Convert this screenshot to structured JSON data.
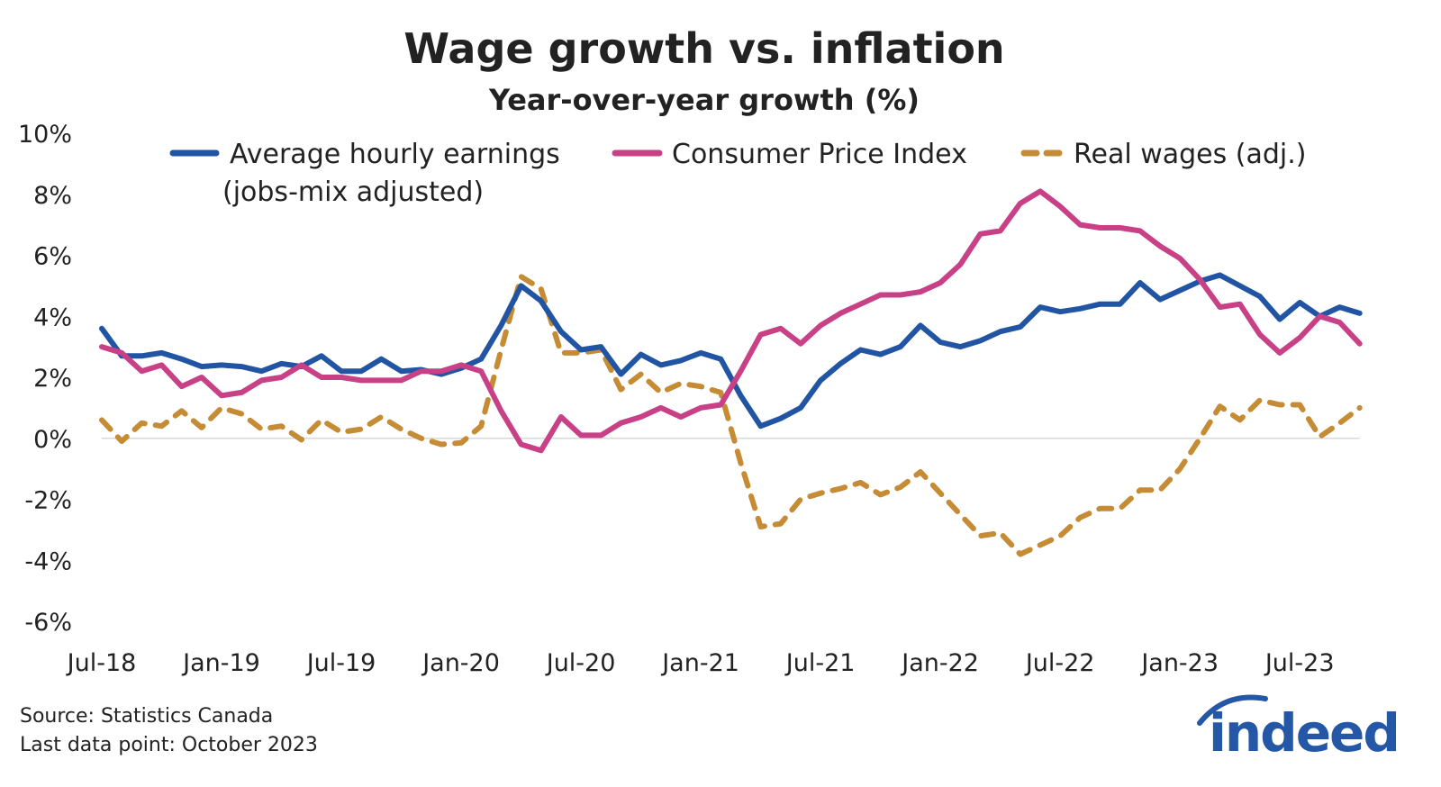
{
  "chart_data": {
    "type": "line",
    "title": "Wage growth vs. inflation",
    "subtitle": "Year-over-year growth (%)",
    "xlabel": "",
    "ylabel": "",
    "ylim": [
      -6,
      10
    ],
    "y_ticks": [
      "10%",
      "8%",
      "6%",
      "4%",
      "2%",
      "0%",
      "-2%",
      "-4%",
      "-6%"
    ],
    "y_tick_values": [
      10,
      8,
      6,
      4,
      2,
      0,
      -2,
      -4,
      -6
    ],
    "x_start": "2018-07",
    "x_end": "2023-10",
    "x_ticks": [
      "Jul-18",
      "Jan-19",
      "Jul-19",
      "Jan-20",
      "Jul-20",
      "Jan-21",
      "Jul-21",
      "Jan-22",
      "Jul-22",
      "Jan-23",
      "Jul-23"
    ],
    "x_tick_months": [
      "2018-07",
      "2019-01",
      "2019-07",
      "2020-01",
      "2020-07",
      "2021-01",
      "2021-07",
      "2022-01",
      "2022-07",
      "2023-01",
      "2023-07"
    ],
    "grid": "zero line only",
    "legend_position": "top",
    "series": [
      {
        "name": "Average hourly earnings (jobs-mix adjusted)",
        "legend_line1": "Average hourly earnings",
        "legend_line2": "(jobs-mix adjusted)",
        "color": "#2155a3",
        "style": "solid",
        "values": [
          3.6,
          2.7,
          2.7,
          2.8,
          2.6,
          2.35,
          2.4,
          2.35,
          2.2,
          2.45,
          2.35,
          2.7,
          2.2,
          2.2,
          2.6,
          2.2,
          2.25,
          2.1,
          2.3,
          2.6,
          3.7,
          5.0,
          4.5,
          3.5,
          2.9,
          3.0,
          2.1,
          2.75,
          2.4,
          2.55,
          2.8,
          2.6,
          1.4,
          0.4,
          0.65,
          1.0,
          1.9,
          2.45,
          2.9,
          2.75,
          3.0,
          3.7,
          3.15,
          3.0,
          3.2,
          3.5,
          3.65,
          4.3,
          4.15,
          4.25,
          4.4,
          4.4,
          5.1,
          4.55,
          4.85,
          5.15,
          5.35,
          5.0,
          4.65,
          3.9,
          4.45,
          4.0,
          4.3,
          4.1
        ]
      },
      {
        "name": "Consumer Price Index",
        "color": "#c84187",
        "style": "solid",
        "values": [
          3.0,
          2.8,
          2.2,
          2.4,
          1.7,
          2.0,
          1.4,
          1.5,
          1.9,
          2.0,
          2.4,
          2.0,
          2.0,
          1.9,
          1.9,
          1.9,
          2.2,
          2.2,
          2.4,
          2.2,
          0.9,
          -0.2,
          -0.4,
          0.7,
          0.1,
          0.1,
          0.5,
          0.7,
          1.0,
          0.7,
          1.0,
          1.1,
          2.2,
          3.4,
          3.6,
          3.1,
          3.7,
          4.1,
          4.4,
          4.7,
          4.7,
          4.8,
          5.1,
          5.7,
          6.7,
          6.8,
          7.7,
          8.1,
          7.6,
          7.0,
          6.9,
          6.9,
          6.8,
          6.3,
          5.9,
          5.2,
          4.3,
          4.4,
          3.4,
          2.8,
          3.3,
          4.0,
          3.8,
          3.1
        ]
      },
      {
        "name": "Real wages (adj.)",
        "color": "#c68b35",
        "style": "dashed",
        "values": [
          0.6,
          -0.1,
          0.5,
          0.4,
          0.9,
          0.35,
          1.0,
          0.8,
          0.3,
          0.4,
          -0.05,
          0.6,
          0.2,
          0.3,
          0.7,
          0.3,
          0.0,
          -0.2,
          -0.15,
          0.4,
          2.9,
          5.3,
          4.9,
          2.8,
          2.8,
          2.9,
          1.6,
          2.1,
          1.5,
          1.8,
          1.7,
          1.5,
          -0.8,
          -2.9,
          -2.8,
          -2.0,
          -1.8,
          -1.65,
          -1.45,
          -1.85,
          -1.6,
          -1.1,
          -1.8,
          -2.5,
          -3.2,
          -3.1,
          -3.8,
          -3.5,
          -3.2,
          -2.6,
          -2.3,
          -2.3,
          -1.7,
          -1.7,
          -1.0,
          0.0,
          1.05,
          0.6,
          1.25,
          1.1,
          1.1,
          0.05,
          0.5,
          1.0
        ]
      }
    ]
  },
  "footer": {
    "source": "Source: Statistics Canada",
    "last_data_point": "Last data point: October 2023"
  },
  "logo": {
    "text": "indeed",
    "color": "#2557a7"
  }
}
